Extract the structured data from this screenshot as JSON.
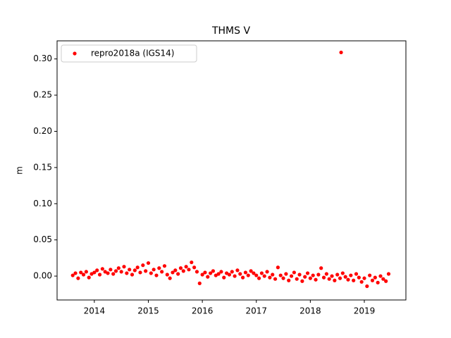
{
  "chart_data": {
    "type": "scatter",
    "title": "THMS V",
    "ylabel": "m",
    "xlim": [
      2013.31,
      2019.77
    ],
    "ylim": [
      -0.033,
      0.325
    ],
    "xticks": [
      2014,
      2015,
      2016,
      2017,
      2018,
      2019
    ],
    "yticks": [
      {
        "value": 0,
        "label": "0.00"
      },
      0.05,
      {
        "value": 0.1,
        "label": "0.10"
      },
      0.15,
      {
        "value": 0.2,
        "label": "0.20"
      },
      0.25,
      {
        "value": 0.3,
        "label": "0.30"
      }
    ],
    "legend": "upper left",
    "series": [
      {
        "name": "repro2018a (IGS14)",
        "color": "#ff0000",
        "x": [
          2013.6,
          2013.65,
          2013.7,
          2013.75,
          2013.8,
          2013.85,
          2013.9,
          2013.95,
          2014.0,
          2014.05,
          2014.1,
          2014.15,
          2014.2,
          2014.25,
          2014.3,
          2014.35,
          2014.4,
          2014.45,
          2014.5,
          2014.55,
          2014.6,
          2014.65,
          2014.7,
          2014.75,
          2014.8,
          2014.85,
          2014.9,
          2014.95,
          2015.0,
          2015.05,
          2015.1,
          2015.15,
          2015.2,
          2015.25,
          2015.3,
          2015.35,
          2015.4,
          2015.45,
          2015.5,
          2015.55,
          2015.6,
          2015.65,
          2015.7,
          2015.75,
          2015.8,
          2015.85,
          2015.9,
          2015.95,
          2016.0,
          2016.05,
          2016.1,
          2016.15,
          2016.2,
          2016.25,
          2016.3,
          2016.35,
          2016.4,
          2016.45,
          2016.5,
          2016.55,
          2016.6,
          2016.65,
          2016.7,
          2016.75,
          2016.8,
          2016.85,
          2016.9,
          2016.95,
          2017.0,
          2017.05,
          2017.1,
          2017.15,
          2017.2,
          2017.25,
          2017.3,
          2017.35,
          2017.4,
          2017.45,
          2017.5,
          2017.55,
          2017.6,
          2017.65,
          2017.7,
          2017.75,
          2017.8,
          2017.85,
          2017.9,
          2017.95,
          2018.0,
          2018.05,
          2018.1,
          2018.15,
          2018.2,
          2018.25,
          2018.3,
          2018.35,
          2018.4,
          2018.45,
          2018.5,
          2018.55,
          2018.6,
          2018.65,
          2018.7,
          2018.75,
          2018.8,
          2018.85,
          2018.9,
          2018.95,
          2019.0,
          2019.05,
          2019.1,
          2019.15,
          2019.2,
          2019.25,
          2019.3,
          2019.35,
          2019.4,
          2019.45,
          2018.57
        ],
        "values": [
          0.001,
          0.004,
          -0.003,
          0.005,
          0.002,
          0.006,
          -0.002,
          0.003,
          0.005,
          0.008,
          0.002,
          0.01,
          0.006,
          0.004,
          0.009,
          0.003,
          0.007,
          0.011,
          0.006,
          0.013,
          0.004,
          0.009,
          0.002,
          0.008,
          0.012,
          0.005,
          0.015,
          0.007,
          0.018,
          0.004,
          0.009,
          0.001,
          0.011,
          0.006,
          0.014,
          0.002,
          -0.003,
          0.005,
          0.008,
          0.003,
          0.011,
          0.007,
          0.013,
          0.009,
          0.019,
          0.012,
          0.006,
          -0.01,
          0.002,
          0.005,
          -0.001,
          0.004,
          0.007,
          0.001,
          0.003,
          0.006,
          -0.002,
          0.004,
          0.002,
          0.006,
          0.0,
          0.008,
          0.003,
          -0.002,
          0.005,
          0.001,
          0.007,
          0.004,
          0.001,
          -0.003,
          0.004,
          0.0,
          0.006,
          -0.002,
          0.002,
          -0.004,
          0.012,
          0.001,
          -0.003,
          0.003,
          -0.006,
          0.0,
          0.005,
          -0.004,
          0.002,
          -0.007,
          -0.001,
          0.004,
          -0.003,
          0.001,
          -0.005,
          0.002,
          0.011,
          -0.002,
          0.003,
          -0.004,
          0.0,
          -0.006,
          0.002,
          -0.003,
          0.004,
          -0.001,
          -0.005,
          0.001,
          -0.006,
          0.003,
          -0.002,
          -0.008,
          -0.003,
          -0.014,
          0.001,
          -0.006,
          -0.002,
          -0.009,
          0.0,
          -0.004,
          -0.007,
          0.003,
          0.309
        ]
      }
    ]
  }
}
